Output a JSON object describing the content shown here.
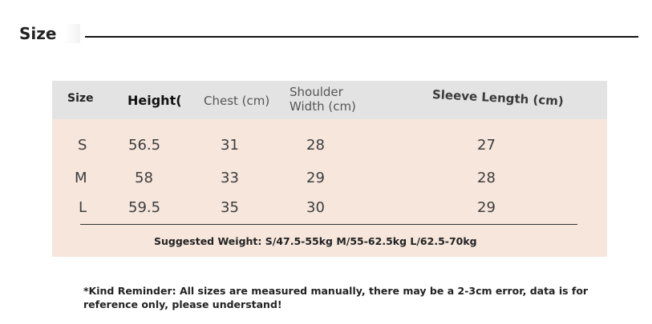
{
  "page_title": "Size",
  "table": {
    "headers": {
      "size": "Size",
      "height": "Height(",
      "chest": "Chest (cm)",
      "shoulder_line1": "Shoulder",
      "shoulder_line2": "Width (cm)",
      "sleeve": "Sleeve Length (cm)"
    },
    "rows": [
      {
        "size": "S",
        "height": "56.5",
        "chest": "31",
        "shoulder": "28",
        "sleeve": "27"
      },
      {
        "size": "M",
        "height": "58",
        "chest": "33",
        "shoulder": "29",
        "sleeve": "28"
      },
      {
        "size": "L",
        "height": "59.5",
        "chest": "35",
        "shoulder": "30",
        "sleeve": "29"
      }
    ],
    "suggested_weight": "Suggested Weight: S/47.5-55kg M/55-62.5kg L/62.5-70kg"
  },
  "reminder_line1": "*Kind Reminder: All sizes are measured manually, there may be a 2-3cm error, data is for",
  "reminder_line2": "reference only, please understand!",
  "colors": {
    "header_bg": "#e4e3e3",
    "body_bg": "#f6e6dc",
    "rule": "#111111"
  }
}
